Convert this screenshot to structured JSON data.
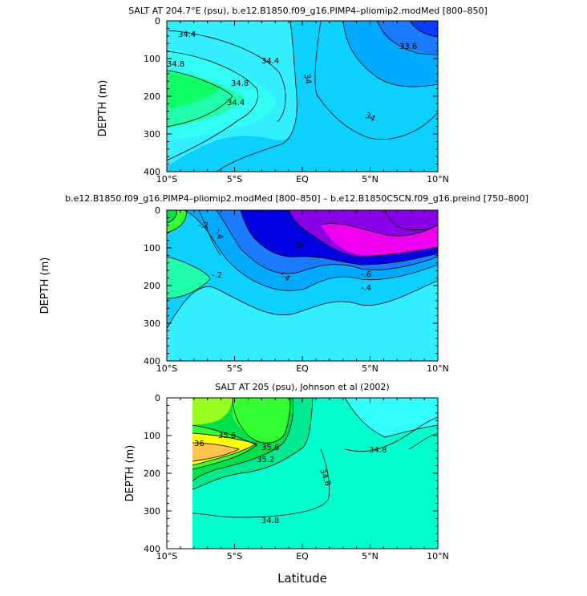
{
  "chart_data": [
    {
      "type": "contour",
      "title": "SALT AT 204.7°E (psu), b.e12.B1850.f09_g16.PIMP4–pliomip2.modMed [800–850]",
      "xlabel": "",
      "ylabel": "DEPTH (m)",
      "xlim": [
        -10,
        10
      ],
      "ylim": [
        400,
        0
      ],
      "x_ticks": [
        "10°S",
        "5°S",
        "EQ",
        "5°N",
        "10°N"
      ],
      "y_ticks": [
        "0",
        "100",
        "200",
        "300",
        "400"
      ],
      "contour_labels": [
        "34.4",
        "34.8",
        "34.4",
        "34.8",
        "34.4",
        "34",
        "33.6",
        "34"
      ],
      "levels": [
        33.6,
        33.8,
        34.0,
        34.2,
        34.4,
        34.6,
        34.8,
        35.0
      ]
    },
    {
      "type": "contour",
      "title": "b.e12.B1850.f09_g16.PIMP4–pliomip2.modMed [800–850] – b.e12.B1850C5CN.f09_g16.preind [750–800]",
      "xlabel": "",
      "ylabel": "DEPTH (m)",
      "xlim": [
        -10,
        10
      ],
      "ylim": [
        400,
        0
      ],
      "x_ticks": [
        "10°S",
        "5°S",
        "EQ",
        "5°N",
        "10°N"
      ],
      "y_ticks": [
        "0",
        "100",
        "200",
        "300",
        "400"
      ],
      "contour_labels": [
        "-.2",
        "-.4",
        "-.2",
        "-.4",
        "-.6",
        "-.6",
        "-.4"
      ],
      "levels": [
        -0.8,
        -0.6,
        -0.4,
        -0.2,
        0.0,
        0.2
      ]
    },
    {
      "type": "contour",
      "title": "SALT AT 205 (psu), Johnson et al (2002)",
      "xlabel": "Latitude",
      "ylabel": "DEPTH (m)",
      "xlim": [
        -10,
        10
      ],
      "ylim": [
        400,
        0
      ],
      "x_ticks": [
        "10°S",
        "5°S",
        "EQ",
        "5°N",
        "10°N"
      ],
      "y_ticks": [
        "0",
        "100",
        "200",
        "300",
        "400"
      ],
      "contour_labels": [
        "35.6",
        "36",
        "35.6",
        "35.2",
        "34.8",
        "34.8",
        "34.8"
      ],
      "levels": [
        34.4,
        34.6,
        34.8,
        35.0,
        35.2,
        35.4,
        35.6,
        35.8,
        36.0
      ]
    }
  ],
  "colors": {
    "c1": "#33eeff",
    "c2": "#0dd0ff",
    "c3": "#00aaff",
    "c4": "#1a7bff",
    "c5": "#0a3cff",
    "c6": "#0000e0",
    "c7": "#8a00e6",
    "c8": "#ee00ee",
    "g1": "#00ffcc",
    "g2": "#00e890",
    "g3": "#00e04a",
    "g4": "#33ff33",
    "g5": "#99ff22",
    "y1": "#ffff00",
    "y2": "#ffc44a"
  }
}
